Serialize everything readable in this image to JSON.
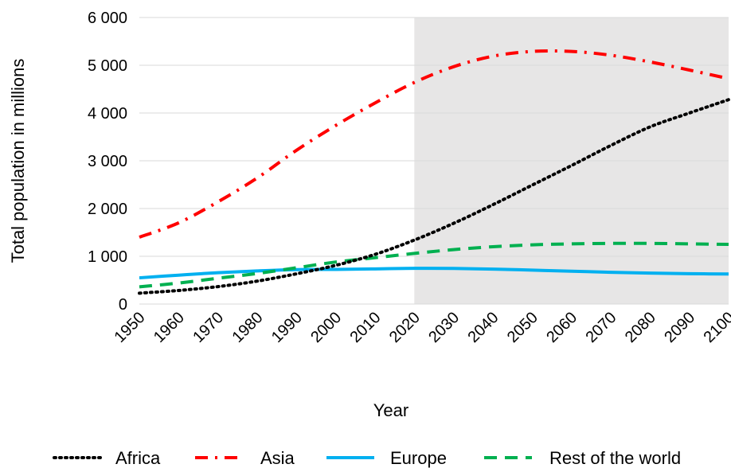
{
  "chart_data": {
    "type": "line",
    "xlabel": "Year",
    "ylabel": "Total population in millions",
    "xlim": [
      1950,
      2100
    ],
    "ylim": [
      0,
      6000
    ],
    "x_ticks": [
      "1950",
      "1960",
      "1970",
      "1980",
      "1990",
      "2000",
      "2010",
      "2020",
      "2030",
      "2040",
      "2050",
      "2060",
      "2070",
      "2080",
      "2090",
      "2100"
    ],
    "y_ticks": [
      "0",
      "1 000",
      "2 000",
      "3 000",
      "4 000",
      "5 000",
      "6 000"
    ],
    "grid": "horizontal",
    "projection_shading_from": 2020,
    "legend_position": "bottom",
    "x": [
      1950,
      1960,
      1970,
      1980,
      1990,
      2000,
      2010,
      2020,
      2030,
      2040,
      2050,
      2060,
      2070,
      2080,
      2090,
      2100
    ],
    "series": [
      {
        "name": "Africa",
        "color": "#000000",
        "style": "dotted",
        "values": [
          228,
          284,
          365,
          480,
          633,
          811,
          1040,
          1340,
          1690,
          2080,
          2490,
          2900,
          3320,
          3710,
          4000,
          4280
        ]
      },
      {
        "name": "Asia",
        "color": "#ff0000",
        "style": "dash-dot",
        "values": [
          1400,
          1700,
          2140,
          2640,
          3220,
          3740,
          4210,
          4640,
          4970,
          5190,
          5290,
          5290,
          5210,
          5070,
          4900,
          4720
        ]
      },
      {
        "name": "Europe",
        "color": "#00b0f0",
        "style": "solid",
        "values": [
          549,
          605,
          657,
          694,
          721,
          726,
          736,
          748,
          746,
          732,
          710,
          688,
          665,
          647,
          635,
          630
        ]
      },
      {
        "name": "Rest of the world",
        "color": "#00b050",
        "style": "dashed",
        "values": [
          360,
          440,
          540,
          640,
          760,
          880,
          970,
          1060,
          1140,
          1200,
          1240,
          1260,
          1270,
          1270,
          1260,
          1250
        ]
      }
    ]
  }
}
